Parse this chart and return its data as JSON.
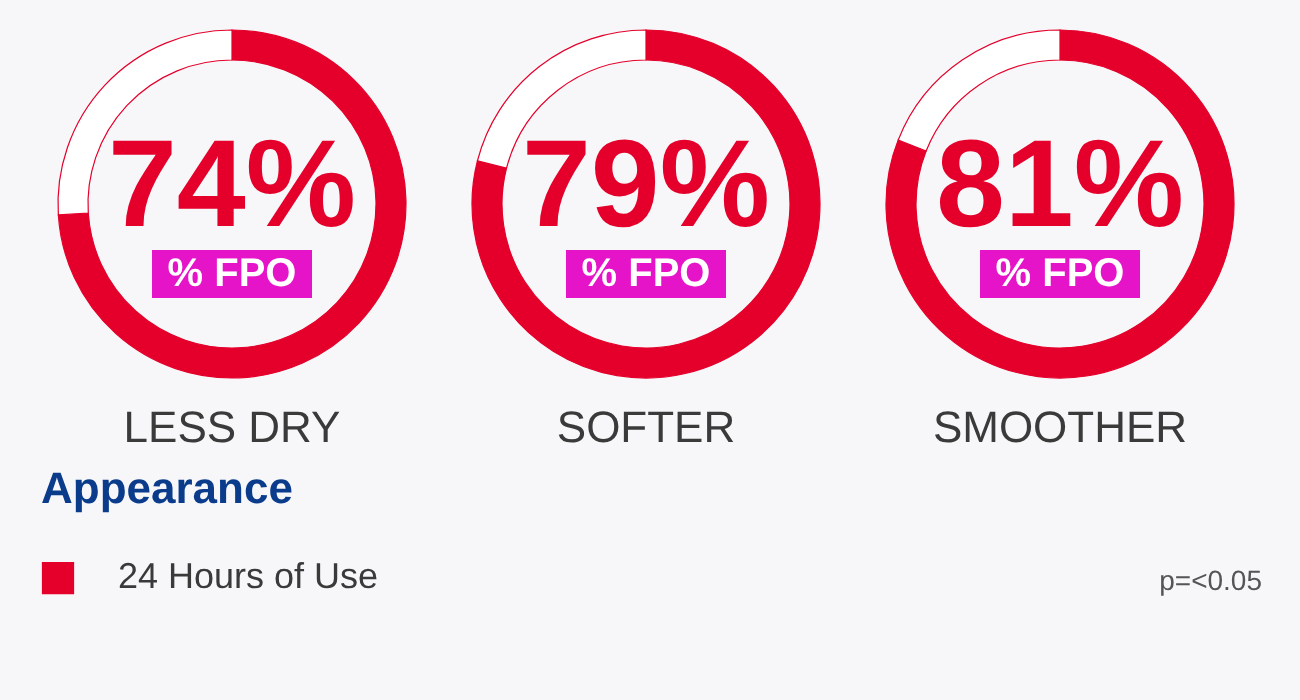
{
  "chart_data": [
    {
      "type": "donut",
      "title": "LESS DRY",
      "categories": [
        null,
        null
      ],
      "values": [
        74,
        26
      ],
      "colors": [
        "#e4002b",
        "#ffffff"
      ],
      "value_labels": [
        "74%",
        null
      ],
      "annotations": [
        "% FPO"
      ]
    },
    {
      "type": "donut",
      "title": "SOFTER",
      "categories": [
        null,
        null
      ],
      "values": [
        79,
        21
      ],
      "colors": [
        "#e4002b",
        "#ffffff"
      ],
      "value_labels": [
        "79%",
        null
      ],
      "annotations": [
        "% FPO"
      ]
    },
    {
      "type": "donut",
      "title": "SMOOTHER",
      "categories": [
        null,
        null
      ],
      "values": [
        81,
        19
      ],
      "colors": [
        "#e4002b",
        "#ffffff"
      ],
      "value_labels": [
        "81%",
        null
      ],
      "annotations": [
        "% FPO"
      ]
    },
    {
      "type": "other",
      "title": "Appearance",
      "categories": [
        "24 Hours of Use"
      ],
      "colors": [
        "#e4002b"
      ],
      "annotations": [
        "p=<0.05"
      ]
    }
  ]
}
